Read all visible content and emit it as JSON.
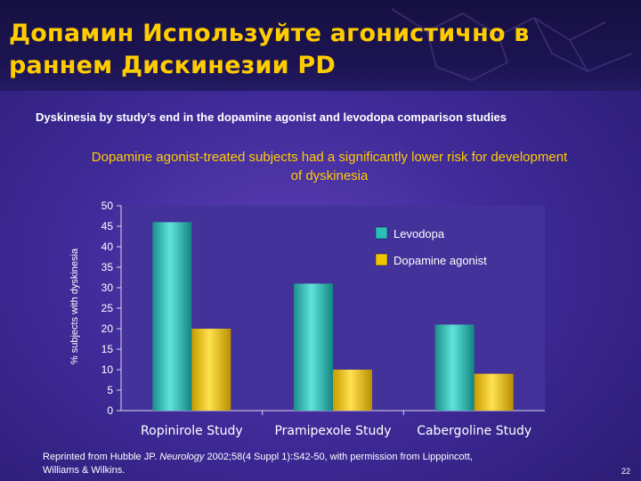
{
  "slide": {
    "title_line1": "Допамин Используйте агонистично в",
    "title_line2": "раннем Дискинезии PD",
    "subtitle": "Dyskinesia by study’s end in the dopamine agonist and levodopa comparison studies",
    "headline_line1": "Dopamine agonist-treated subjects had a significantly lower risk for development",
    "headline_line2": "of dyskinesia",
    "reference_prefix": "Reprinted from Hubble JP. ",
    "reference_journal": "Neurology",
    "reference_rest": " 2002;58(4 Suppl 1):S42-50, with permission from Lipppincott,",
    "reference_line2": "Williams & Wilkins.",
    "page_number": "22"
  },
  "colors": {
    "title": "#ffcc00",
    "levodopa": "#2bbfb9",
    "dopamine_agonist": "#f2c500",
    "plot_background": "#43329a",
    "text": "#ffffff"
  },
  "chart_data": {
    "type": "bar",
    "categories": [
      "Ropinirole Study",
      "Pramipexole Study",
      "Cabergoline Study"
    ],
    "series": [
      {
        "name": "Levodopa",
        "values": [
          46,
          31,
          21
        ]
      },
      {
        "name": "Dopamine agonist",
        "values": [
          20,
          10,
          9
        ]
      }
    ],
    "ylabel": "% subjects with dyskinesia",
    "ylim": [
      0,
      50
    ],
    "yticks": [
      0,
      5,
      10,
      15,
      20,
      25,
      30,
      35,
      40,
      45,
      50
    ],
    "grid": false,
    "legend": "top-right"
  }
}
